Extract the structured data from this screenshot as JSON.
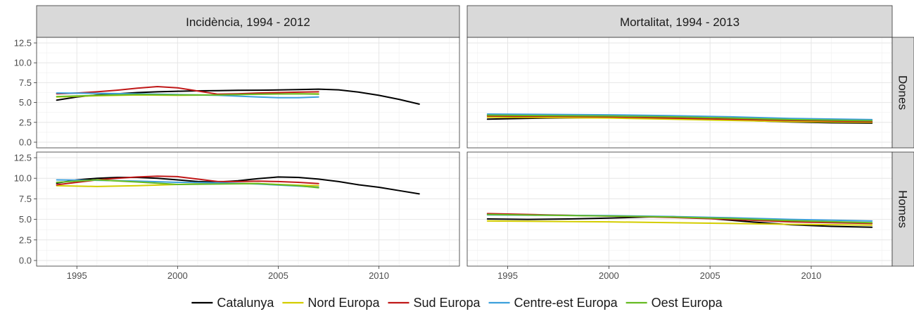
{
  "chart_data": {
    "type": "line",
    "facet_columns": [
      "Incidència, 1994 - 2012",
      "Mortalitat, 1994 - 2013"
    ],
    "facet_rows": [
      "Dones",
      "Homes"
    ],
    "x_ticks": [
      1995,
      2000,
      2005,
      2010
    ],
    "y_ticks": [
      "0.0",
      "2.5",
      "5.0",
      "7.5",
      "10.0",
      "12.5"
    ],
    "xlim": [
      1993,
      2014
    ],
    "ylim": [
      0,
      12.5
    ],
    "grid": true,
    "legend_position": "bottom",
    "colors": {
      "Catalunya": "#000000",
      "Nord Europa": "#d4cd00",
      "Sud Europa": "#c01818",
      "Centre-est Europa": "#3ca0dc",
      "Oest Europa": "#66bb22"
    },
    "series": [
      {
        "name": "Catalunya",
        "panel": "incidencia-dones",
        "x": [
          1994,
          1995,
          1996,
          1997,
          1998,
          1999,
          2000,
          2001,
          2002,
          2003,
          2004,
          2005,
          2006,
          2007,
          2008,
          2009,
          2010,
          2011,
          2012
        ],
        "values": [
          5.3,
          5.7,
          5.95,
          6.1,
          6.25,
          6.35,
          6.42,
          6.47,
          6.5,
          6.53,
          6.55,
          6.58,
          6.62,
          6.68,
          6.6,
          6.3,
          5.9,
          5.4,
          4.8
        ]
      },
      {
        "name": "Nord Europa",
        "panel": "incidencia-dones",
        "x": [
          1994,
          1996,
          1998,
          2000,
          2002,
          2004,
          2006,
          2007
        ],
        "values": [
          5.7,
          5.85,
          5.95,
          5.9,
          5.95,
          6.05,
          6.1,
          6.1
        ]
      },
      {
        "name": "Sud Europa",
        "panel": "incidencia-dones",
        "x": [
          1994,
          1995,
          1996,
          1997,
          1998,
          1999,
          2000,
          2001,
          2002,
          2003,
          2004,
          2005,
          2006,
          2007
        ],
        "values": [
          6.1,
          6.2,
          6.35,
          6.55,
          6.8,
          7.0,
          6.85,
          6.45,
          6.05,
          6.1,
          6.2,
          6.25,
          6.3,
          6.35
        ]
      },
      {
        "name": "Centre-est Europa",
        "panel": "incidencia-dones",
        "x": [
          1994,
          1996,
          1998,
          2000,
          2002,
          2004,
          2005,
          2006,
          2007
        ],
        "values": [
          6.2,
          6.15,
          6.1,
          6.0,
          5.9,
          5.7,
          5.6,
          5.6,
          5.7
        ]
      },
      {
        "name": "Oest Europa",
        "panel": "incidencia-dones",
        "x": [
          1994,
          1996,
          1998,
          2000,
          2002,
          2004,
          2006,
          2007
        ],
        "values": [
          5.75,
          5.9,
          6.0,
          5.95,
          5.95,
          6.05,
          6.1,
          6.05
        ]
      },
      {
        "name": "Catalunya",
        "panel": "incidencia-homes",
        "x": [
          1994,
          1995,
          1996,
          1997,
          1998,
          1999,
          2000,
          2001,
          2002,
          2003,
          2004,
          2005,
          2006,
          2007,
          2008,
          2009,
          2010,
          2011,
          2012
        ],
        "values": [
          9.4,
          9.8,
          10.0,
          10.1,
          10.1,
          10.0,
          9.8,
          9.6,
          9.55,
          9.7,
          9.95,
          10.15,
          10.1,
          9.9,
          9.6,
          9.2,
          8.9,
          8.5,
          8.1
        ]
      },
      {
        "name": "Nord Europa",
        "panel": "incidencia-homes",
        "x": [
          1994,
          1996,
          1998,
          2000,
          2002,
          2004,
          2006,
          2007
        ],
        "values": [
          9.1,
          9.0,
          9.1,
          9.25,
          9.4,
          9.35,
          9.15,
          9.1
        ]
      },
      {
        "name": "Sud Europa",
        "panel": "incidencia-homes",
        "x": [
          1994,
          1995,
          1996,
          1997,
          1998,
          1999,
          2000,
          2001,
          2002,
          2003,
          2004,
          2005,
          2006,
          2007
        ],
        "values": [
          9.2,
          9.5,
          9.8,
          10.0,
          10.15,
          10.25,
          10.2,
          9.9,
          9.6,
          9.6,
          9.65,
          9.6,
          9.5,
          9.35
        ]
      },
      {
        "name": "Centre-est Europa",
        "panel": "incidencia-homes",
        "x": [
          1994,
          1996,
          1998,
          2000,
          2002,
          2004,
          2006,
          2007
        ],
        "values": [
          9.8,
          9.75,
          9.65,
          9.5,
          9.45,
          9.3,
          9.05,
          8.9
        ]
      },
      {
        "name": "Oest Europa",
        "panel": "incidencia-homes",
        "x": [
          1994,
          1996,
          1998,
          2000,
          2002,
          2004,
          2006,
          2007
        ],
        "values": [
          9.5,
          9.8,
          9.55,
          9.25,
          9.3,
          9.35,
          9.1,
          8.85
        ]
      },
      {
        "name": "Catalunya",
        "panel": "mortalitat-dones",
        "x": [
          1994,
          1997,
          2000,
          2003,
          2006,
          2009,
          2011,
          2013
        ],
        "values": [
          2.9,
          3.05,
          3.1,
          3.0,
          2.8,
          2.55,
          2.45,
          2.4
        ]
      },
      {
        "name": "Nord Europa",
        "panel": "mortalitat-dones",
        "x": [
          1994,
          1997,
          2000,
          2003,
          2006,
          2009,
          2013
        ],
        "values": [
          3.15,
          3.1,
          3.05,
          2.9,
          2.75,
          2.6,
          2.5
        ]
      },
      {
        "name": "Sud Europa",
        "panel": "mortalitat-dones",
        "x": [
          1994,
          1997,
          2000,
          2003,
          2006,
          2009,
          2013
        ],
        "values": [
          3.3,
          3.25,
          3.2,
          3.05,
          2.9,
          2.75,
          2.6
        ]
      },
      {
        "name": "Centre-est Europa",
        "panel": "mortalitat-dones",
        "x": [
          1994,
          1997,
          2000,
          2003,
          2006,
          2009,
          2013
        ],
        "values": [
          3.55,
          3.5,
          3.45,
          3.35,
          3.2,
          3.0,
          2.85
        ]
      },
      {
        "name": "Oest Europa",
        "panel": "mortalitat-dones",
        "x": [
          1994,
          1997,
          2000,
          2003,
          2006,
          2009,
          2013
        ],
        "values": [
          3.4,
          3.35,
          3.3,
          3.2,
          3.05,
          2.85,
          2.7
        ]
      },
      {
        "name": "Catalunya",
        "panel": "mortalitat-homes",
        "x": [
          1994,
          1996,
          1998,
          2000,
          2002,
          2003,
          2005,
          2007,
          2009,
          2011,
          2013
        ],
        "values": [
          5.05,
          5.0,
          5.05,
          5.15,
          5.3,
          5.35,
          5.1,
          4.7,
          4.35,
          4.15,
          4.05
        ]
      },
      {
        "name": "Nord Europa",
        "panel": "mortalitat-homes",
        "x": [
          1994,
          1997,
          2000,
          2003,
          2006,
          2009,
          2013
        ],
        "values": [
          4.8,
          4.75,
          4.7,
          4.6,
          4.5,
          4.4,
          4.3
        ]
      },
      {
        "name": "Sud Europa",
        "panel": "mortalitat-homes",
        "x": [
          1994,
          1997,
          2000,
          2003,
          2006,
          2009,
          2013
        ],
        "values": [
          5.7,
          5.55,
          5.4,
          5.25,
          5.0,
          4.7,
          4.5
        ]
      },
      {
        "name": "Centre-est Europa",
        "panel": "mortalitat-homes",
        "x": [
          1994,
          1997,
          2000,
          2003,
          2006,
          2009,
          2013
        ],
        "values": [
          5.55,
          5.5,
          5.45,
          5.35,
          5.2,
          5.0,
          4.8
        ]
      },
      {
        "name": "Oest Europa",
        "panel": "mortalitat-homes",
        "x": [
          1994,
          1997,
          2000,
          2003,
          2006,
          2009,
          2013
        ],
        "values": [
          5.6,
          5.5,
          5.4,
          5.3,
          5.1,
          4.85,
          4.6
        ]
      }
    ]
  }
}
